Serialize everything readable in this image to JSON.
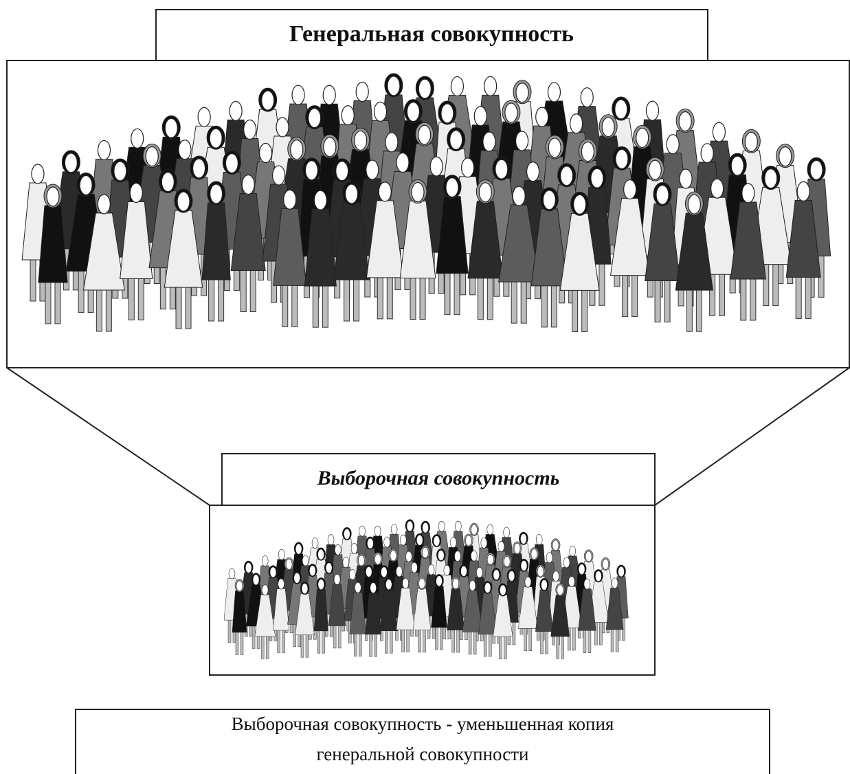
{
  "title": "Генеральная совокупность",
  "sample_title": "Выборочная совокупность",
  "caption": [
    "Выборочная совокупность - уменьшенная копия",
    "генеральной совокупности"
  ]
}
